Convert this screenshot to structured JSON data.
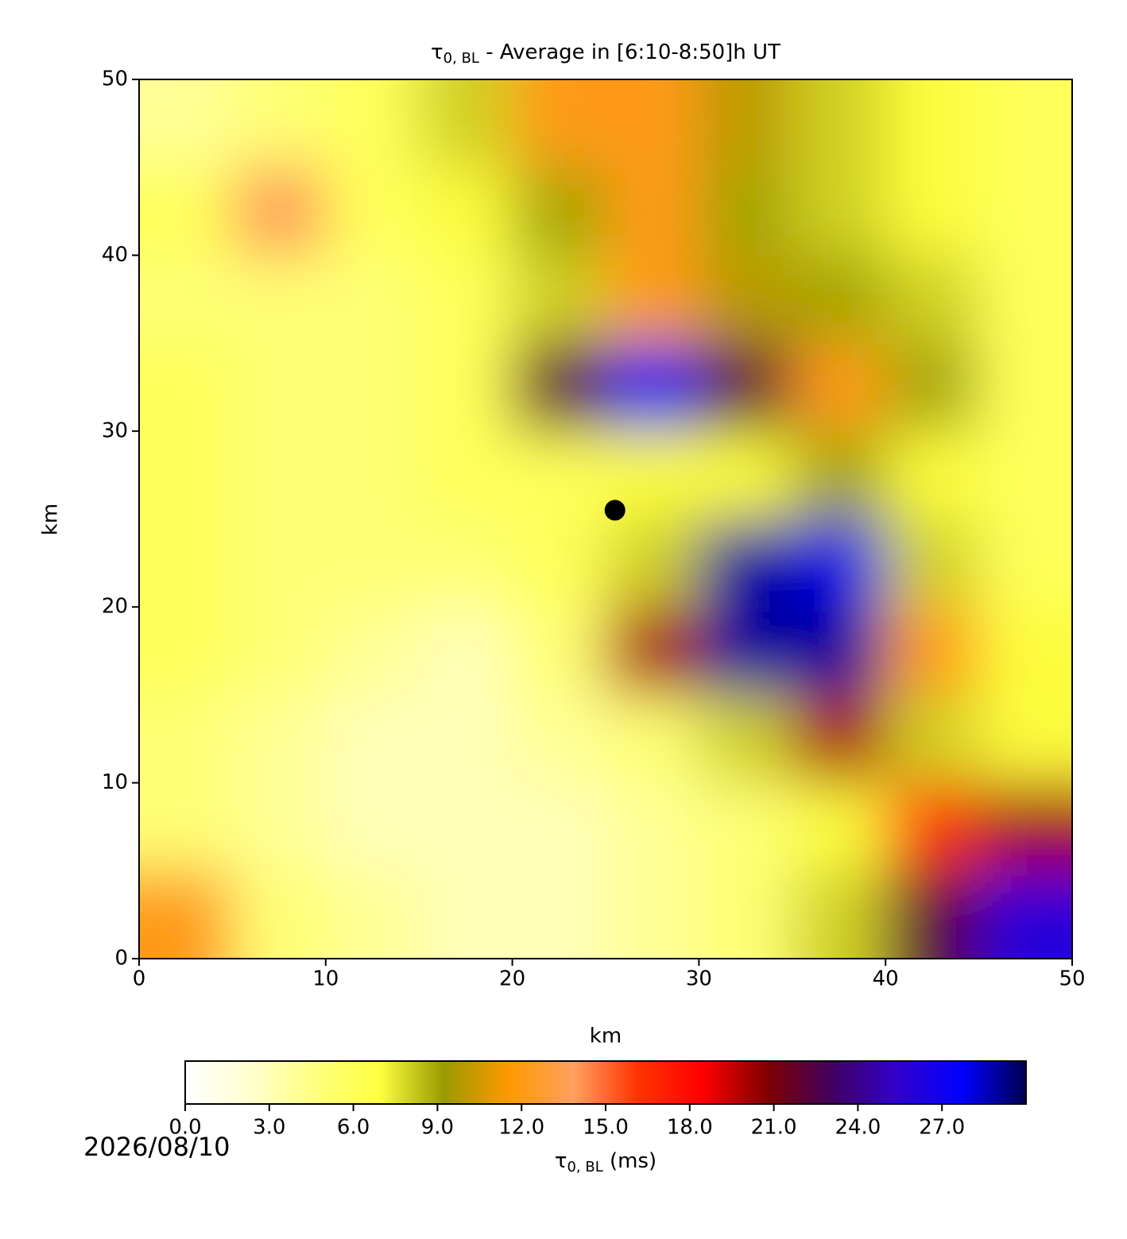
{
  "chart_data": {
    "type": "heatmap",
    "title": {
      "symbol": "τ",
      "subscript": "0, BL",
      "text": " - Average in [6:10-8:50]h UT"
    },
    "xlabel": "km",
    "ylabel": "km",
    "xlim": [
      0,
      50
    ],
    "ylim": [
      0,
      50
    ],
    "xticks": [
      0,
      10,
      20,
      30,
      40,
      50
    ],
    "yticks": [
      0,
      10,
      20,
      30,
      40,
      50
    ],
    "x": [
      2.5,
      7.5,
      12.5,
      17.5,
      22.5,
      27.5,
      32.5,
      37.5,
      42.5,
      47.5
    ],
    "y": [
      2.5,
      7.5,
      12.5,
      17.5,
      22.5,
      27.5,
      32.5,
      37.5,
      42.5,
      47.5
    ],
    "z": [
      [
        12,
        5,
        4,
        3,
        3,
        4,
        5,
        8,
        22,
        26
      ],
      [
        5,
        4,
        3,
        3,
        3,
        4,
        5,
        7,
        16,
        20
      ],
      [
        5,
        4,
        3,
        3,
        4,
        5,
        8,
        20,
        8,
        7
      ],
      [
        6,
        5,
        4,
        3,
        5,
        20,
        29,
        29,
        12,
        7
      ],
      [
        6,
        5,
        5,
        5,
        6,
        8,
        29,
        28,
        8,
        6
      ],
      [
        6,
        5,
        5,
        6,
        6,
        7,
        7,
        9,
        7,
        6
      ],
      [
        6,
        5,
        5,
        6,
        22,
        27,
        22,
        12,
        9,
        6
      ],
      [
        5,
        5,
        5,
        6,
        8,
        12,
        10,
        9,
        8,
        6
      ],
      [
        6,
        14,
        6,
        7,
        9,
        12,
        9,
        8,
        7,
        6
      ],
      [
        4,
        5,
        6,
        8,
        12,
        12,
        10,
        8,
        7,
        6
      ]
    ],
    "points": [
      {
        "x": 25.5,
        "y": 25.5,
        "color": "#000000"
      }
    ],
    "colorbar": {
      "label": {
        "symbol": "τ",
        "subscript": "0, BL",
        "text": " (ms)"
      },
      "lim": [
        0,
        30
      ],
      "ticks": [
        {
          "value": 0,
          "label": "0.0"
        },
        {
          "value": 3,
          "label": "3.0"
        },
        {
          "value": 6,
          "label": "6.0"
        },
        {
          "value": 9,
          "label": "9.0"
        },
        {
          "value": 12,
          "label": "12.0"
        },
        {
          "value": 15,
          "label": "15.0"
        },
        {
          "value": 18,
          "label": "18.0"
        },
        {
          "value": 21,
          "label": "21.0"
        },
        {
          "value": 24,
          "label": "24.0"
        },
        {
          "value": 27,
          "label": "27.0"
        }
      ],
      "colormap": [
        "#ffffff",
        "#ffffd0",
        "#ffff80",
        "#ffff40",
        "#9a9a00",
        "#ff9900",
        "#ffa060",
        "#ff3300",
        "#ff0000",
        "#800000",
        "#400060",
        "#3300cc",
        "#0000ff",
        "#000050"
      ]
    },
    "annotation": "2026/08/10"
  }
}
